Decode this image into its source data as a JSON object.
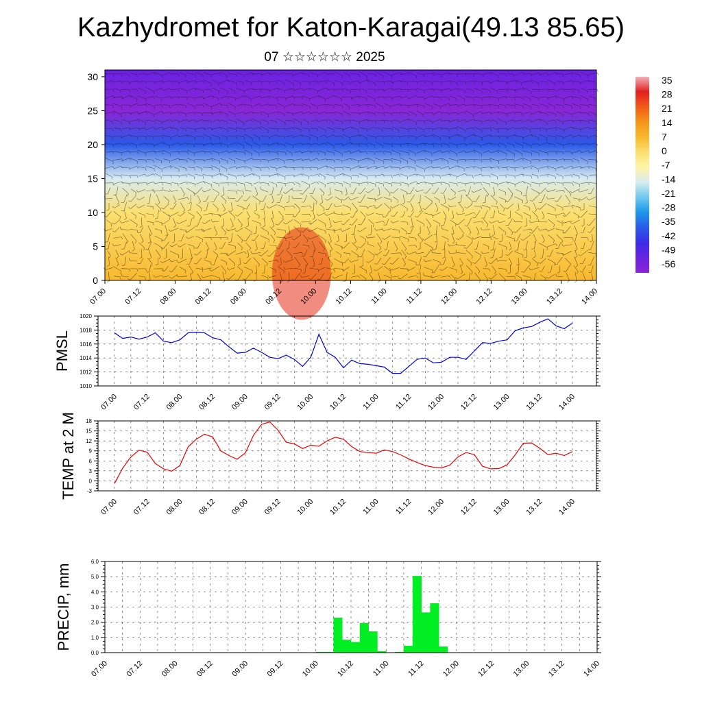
{
  "title": "Kazhydromet for Katon-Karagai(49.13 85.65)",
  "subtitle": "07 ☆☆☆☆☆☆ 2025",
  "time_ticks": [
    "07.00",
    "07.12",
    "08.00",
    "08.12",
    "09.00",
    "09.12",
    "10.00",
    "10.12",
    "11.00",
    "11.12",
    "12.00",
    "12.12",
    "13.00",
    "13.12",
    "14.00"
  ],
  "colors": {
    "pmsl_line": "#0000dd",
    "temp_line": "#ee0000",
    "precip_bar": "#00ee22"
  },
  "chart_data": [
    {
      "type": "heatmap",
      "name": "upper-air temperature cross-section with wind barbs",
      "x_range": [
        "07.00",
        "14.00"
      ],
      "ylim": [
        0,
        31
      ],
      "yticks": [
        "0",
        "5",
        "10",
        "15",
        "20",
        "25",
        "30"
      ],
      "colorbar": {
        "labels": [
          "35",
          "28",
          "21",
          "14",
          "7",
          "0",
          "-7",
          "-14",
          "-21",
          "-28",
          "-35",
          "-42",
          "-49",
          "-56"
        ],
        "colors": [
          "#f4b0b8",
          "#e02020",
          "#f05c18",
          "#f6961a",
          "#f8b82e",
          "#fbe070",
          "#fff4a8",
          "#d7ecf0",
          "#6fc8ee",
          "#1c96ea",
          "#2a5ae8",
          "#3c2ce6",
          "#6a22e2",
          "#8a26d6"
        ]
      },
      "description_levels": [
        {
          "height": 0,
          "temp": 7
        },
        {
          "height": 10,
          "temp": 0
        },
        {
          "height": 15,
          "temp": -14
        },
        {
          "height": 20,
          "temp": -35
        },
        {
          "height": 25,
          "temp": -56
        },
        {
          "height": 31,
          "temp": -49
        }
      ]
    },
    {
      "type": "line",
      "ylabel": "PMSL",
      "ylim": [
        1010,
        1020
      ],
      "yticks": [
        "1010",
        "1012",
        "1014",
        "1016",
        "1018",
        "1020"
      ],
      "grid": true,
      "series": [
        {
          "x_step_hours": 3,
          "values": [
            1017.6,
            1016.8,
            1017.0,
            1016.7,
            1017.0,
            1017.6,
            1016.4,
            1016.2,
            1016.6,
            1017.6,
            1017.7,
            1017.6,
            1016.9,
            1016.6,
            1015.6,
            1014.7,
            1014.8,
            1015.4,
            1014.8,
            1014.1,
            1013.9,
            1014.4,
            1013.8,
            1012.8,
            1014.1,
            1017.4,
            1014.8,
            1014.1,
            1012.6,
            1013.7,
            1013.2,
            1013.1,
            1012.9,
            1012.7,
            1011.8,
            1011.8,
            1012.8,
            1013.8,
            1014.0,
            1013.3,
            1013.4,
            1014.1,
            1014.1,
            1013.8,
            1015.0,
            1016.2,
            1016.1,
            1016.4,
            1016.6,
            1017.9,
            1018.3,
            1018.5,
            1019.1,
            1019.6,
            1018.6,
            1018.2,
            1019.0
          ]
        }
      ]
    },
    {
      "type": "line",
      "ylabel": "TEMP at 2 M",
      "ylim": [
        -3,
        18
      ],
      "yticks": [
        "-3",
        "0",
        "3",
        "6",
        "9",
        "12",
        "15",
        "18"
      ],
      "grid": true,
      "series": [
        {
          "x_step_hours": 3,
          "values": [
            -0.8,
            3.8,
            7.2,
            9.2,
            8.6,
            5.2,
            3.6,
            2.9,
            4.6,
            10.2,
            12.5,
            14.0,
            13.2,
            9.0,
            7.6,
            6.5,
            8.4,
            13.7,
            17.0,
            17.7,
            15.2,
            11.6,
            11.1,
            9.7,
            10.7,
            10.4,
            12.0,
            13.1,
            12.5,
            10.3,
            8.8,
            8.5,
            8.3,
            9.3,
            8.8,
            7.8,
            6.6,
            5.5,
            4.6,
            4.1,
            3.9,
            4.7,
            7.2,
            8.5,
            7.9,
            4.4,
            3.6,
            3.7,
            4.8,
            7.8,
            11.3,
            11.4,
            9.8,
            7.9,
            8.3,
            7.6,
            8.8
          ]
        }
      ]
    },
    {
      "type": "bar",
      "ylabel": "PRECIP, mm",
      "ylim": [
        0,
        6
      ],
      "yticks": [
        "0.0",
        "1.0",
        "2.0",
        "3.0",
        "4.0",
        "5.0",
        "6.0"
      ],
      "grid": true,
      "series": [
        {
          "x_step_hours": 3,
          "values": [
            0,
            0,
            0,
            0,
            0,
            0,
            0,
            0,
            0,
            0,
            0,
            0,
            0,
            0,
            0,
            0,
            0,
            0,
            0,
            0,
            0,
            0,
            0,
            0,
            0.05,
            0.05,
            2.3,
            0.85,
            0.7,
            1.95,
            1.4,
            0.1,
            0,
            0.05,
            0.45,
            5.05,
            2.65,
            3.25,
            0.4,
            0,
            0,
            0,
            0,
            0,
            0,
            0,
            0,
            0,
            0,
            0,
            0,
            0,
            0,
            0,
            0,
            0
          ]
        }
      ]
    }
  ]
}
